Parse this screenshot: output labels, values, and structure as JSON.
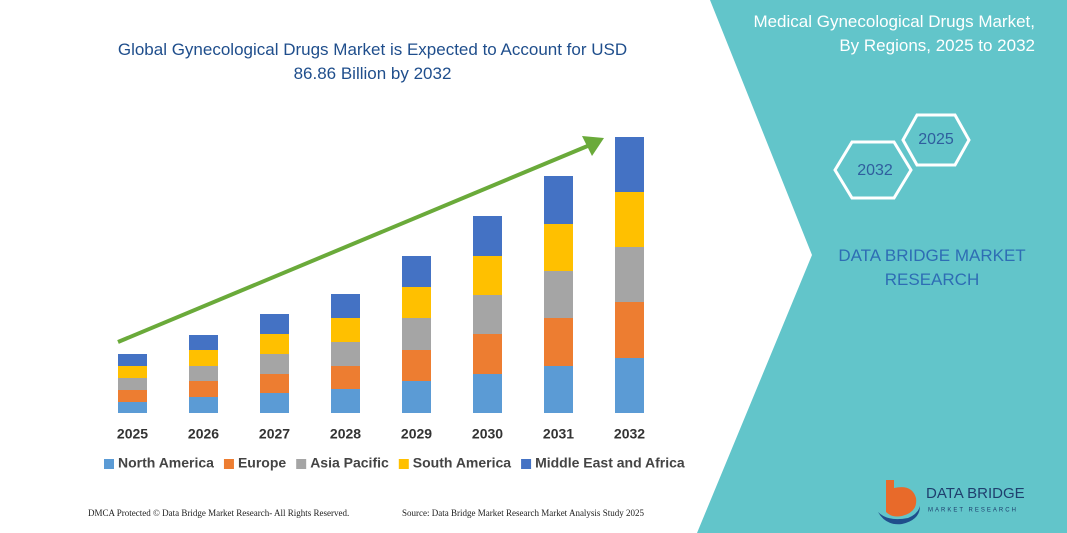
{
  "chart_data": {
    "type": "stacked-bar",
    "title": "Global Gynecological Drugs Market is Expected to Account for USD 86.86 Billion by 2032",
    "categories": [
      "2025",
      "2026",
      "2027",
      "2028",
      "2029",
      "2030",
      "2031",
      "2032"
    ],
    "series": [
      {
        "name": "North America",
        "color": "#5b9bd5",
        "values": [
          11,
          16,
          20,
          24,
          32,
          39,
          47,
          55
        ]
      },
      {
        "name": "Europe",
        "color": "#ed7d31",
        "values": [
          12,
          16,
          19,
          23,
          31,
          40,
          48,
          56
        ]
      },
      {
        "name": "Asia Pacific",
        "color": "#a5a5a5",
        "values": [
          12,
          15,
          20,
          24,
          32,
          39,
          47,
          55
        ]
      },
      {
        "name": "South America",
        "color": "#ffc000",
        "values": [
          12,
          16,
          20,
          24,
          31,
          39,
          47,
          55
        ]
      },
      {
        "name": "Middle East and Africa",
        "color": "#4472c4",
        "values": [
          12,
          15,
          20,
          24,
          31,
          40,
          48,
          55
        ]
      }
    ],
    "ylim": [
      0,
      280
    ],
    "legend": "bottom"
  },
  "panel": {
    "title": "Medical Gynecological Drugs Market, By Regions, 2025 to 2032",
    "hexagons": [
      "2032",
      "2025"
    ],
    "brand": "DATA BRIDGE MARKET RESEARCH"
  },
  "logo": {
    "name": "DATA BRIDGE",
    "tagline": "MARKET RESEARCH"
  },
  "footer": {
    "left": "DMCA Protected © Data Bridge Market Research- All Rights Reserved.",
    "right": "Source: Data Bridge Market Research  Market Analysis Study 2025"
  }
}
